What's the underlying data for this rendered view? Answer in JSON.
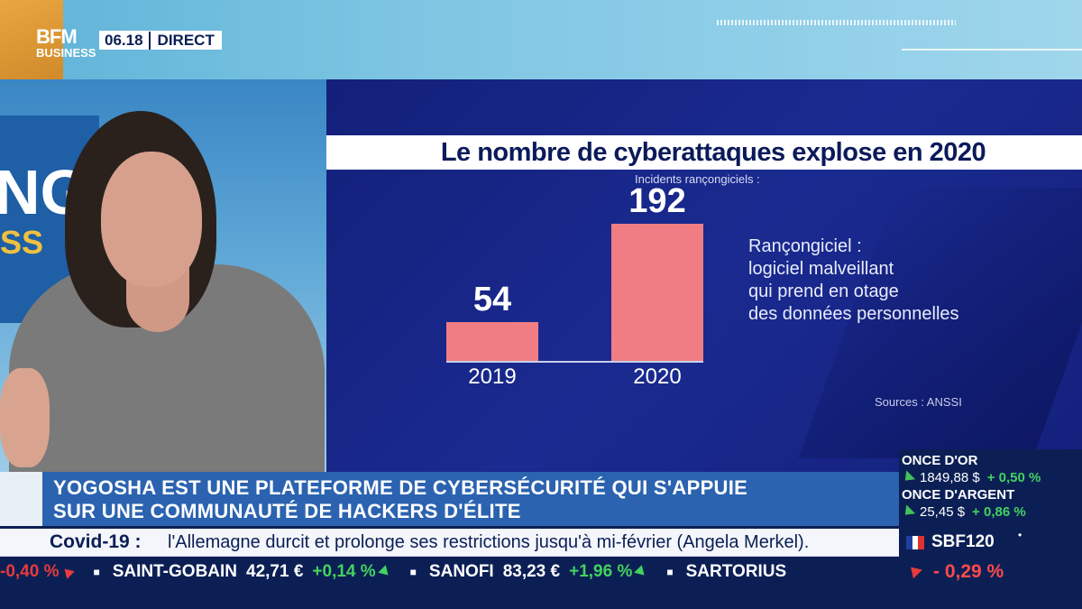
{
  "channel": {
    "logo_line1": "BFM",
    "logo_line2": "BUSINESS",
    "time": "06.18",
    "live_label": "DIRECT"
  },
  "studio": {
    "backdrop_text": "NG",
    "backdrop_text2": "SS"
  },
  "graphic": {
    "title": "Le nombre de cyberattaques explose en 2020",
    "subtitle": "Incidents rançongiciels :",
    "definition": [
      "Rançongiciel :",
      "logiciel malveillant",
      "qui prend en otage",
      "des données personnelles"
    ],
    "source": "Sources : ANSSI"
  },
  "chart_data": {
    "type": "bar",
    "title": "Le nombre de cyberattaques explose en 2020",
    "subtitle": "Incidents rançongiciels :",
    "categories": [
      "2019",
      "2020"
    ],
    "values": [
      54,
      192
    ],
    "value_labels": [
      "54",
      "192"
    ],
    "ylim": [
      0,
      200
    ],
    "bar_color": "#f07d83",
    "grid": false
  },
  "headline": {
    "line1": "YOGOSHA EST UNE PLATEFORME DE CYBERSÉCURITÉ QUI S'APPUIE",
    "line2": "SUR UNE COMMUNAUTÉ DE HACKERS D'ÉLITE"
  },
  "markets": [
    {
      "name": "ONCE D'OR",
      "value": "1849,88 $",
      "change": "+ 0,50 %"
    },
    {
      "name": "ONCE D'ARGENT",
      "value": "25,45 $",
      "change": "+ 0,86 %"
    }
  ],
  "news": {
    "label": "Covid-19 :",
    "text": "l'Allemagne durcit et prolonge ses restrictions jusqu'à mi-février (Angela Merkel)."
  },
  "index": {
    "name": "SBF120",
    "dot": "•",
    "change": "- 0,29 %"
  },
  "stocks": [
    {
      "name": "",
      "change": "-0,40 %",
      "dir": "down"
    },
    {
      "name": "SAINT-GOBAIN",
      "price": "42,71 €",
      "change": "+0,14 %",
      "dir": "up"
    },
    {
      "name": "SANOFI",
      "price": "83,23 €",
      "change": "+1,96 %",
      "dir": "up"
    },
    {
      "name": "SARTORIUS",
      "price": "",
      "change": "",
      "dir": ""
    }
  ],
  "colors": {
    "brand_blue": "#0b1f55",
    "headline_blue": "#2b63b0",
    "bar": "#f07d83",
    "positive": "#43d25e",
    "negative": "#e83b3b"
  }
}
